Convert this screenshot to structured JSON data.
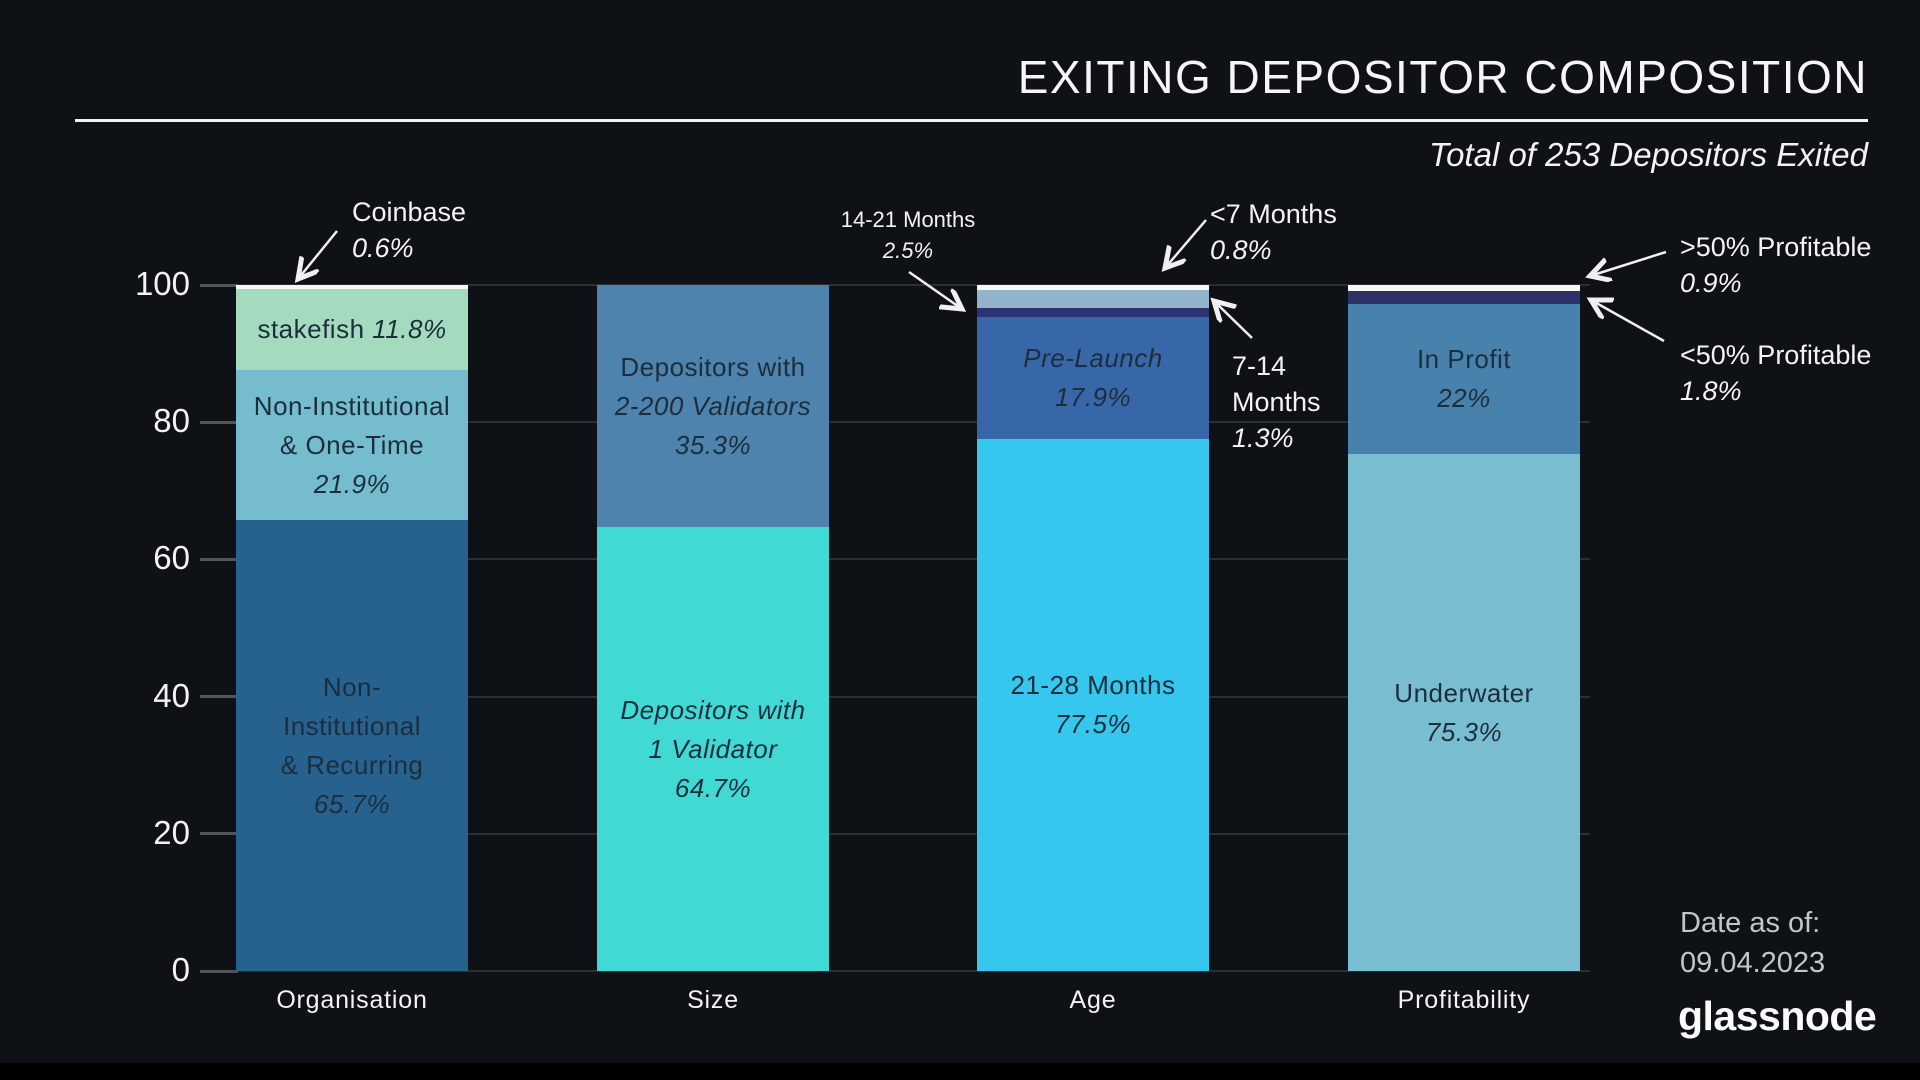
{
  "chart_data": {
    "type": "bar",
    "subtype": "stacked_100_percent",
    "title": "EXITING DEPOSITOR COMPOSITION",
    "subtitle": "Total of 253 Depositors Exited",
    "ylim": [
      0,
      100
    ],
    "yticks": [
      0,
      20,
      40,
      60,
      80,
      100
    ],
    "grid": "horizontal",
    "legend_position": "none",
    "categories": [
      "Organisation",
      "Size",
      "Age",
      "Profitability"
    ],
    "colors": {
      "background": "#0e1115",
      "gridline": "#2b2e33",
      "tick_stub": "#51555a",
      "axis_text": "#f2f3f4",
      "bar_label_text": "#1c2e3c",
      "annotation_arrow": "#eef0f1"
    },
    "bars": [
      {
        "category": "Organisation",
        "segments": [
          {
            "name": "Non-Institutional & Recurring",
            "value": 65.7,
            "color": "#27618e",
            "lines": [
              [
                {
                  "t": "Non-",
                  "i": false
                }
              ],
              [
                {
                  "t": "Institutional",
                  "i": false
                }
              ],
              [
                {
                  "t": "& Recurring",
                  "i": false
                }
              ],
              [
                {
                  "t": "65.7%",
                  "i": true
                }
              ]
            ]
          },
          {
            "name": "Non-Institutional & One-Time",
            "value": 21.9,
            "color": "#74bcce",
            "lines": [
              [
                {
                  "t": "Non-Institutional",
                  "i": false
                }
              ],
              [
                {
                  "t": "& One-Time",
                  "i": false
                }
              ],
              [
                {
                  "t": "21.9%",
                  "i": true
                }
              ]
            ]
          },
          {
            "name": "stakefish",
            "value": 11.8,
            "color": "#a4dabe",
            "lines": [
              [
                {
                  "t": "stakefish ",
                  "i": false
                },
                {
                  "t": "11.8%",
                  "i": true
                }
              ]
            ]
          },
          {
            "name": "Coinbase",
            "value": 0.6,
            "color": "#f7f8f6",
            "lines": []
          }
        ]
      },
      {
        "category": "Size",
        "segments": [
          {
            "name": "Depositors with 1 Validator",
            "value": 64.7,
            "color": "#40d9d4",
            "lines": [
              [
                {
                  "t": "Depositors with",
                  "i": true
                }
              ],
              [
                {
                  "t": "1 Validator",
                  "i": true
                }
              ],
              [
                {
                  "t": "64.7%",
                  "i": true
                }
              ]
            ]
          },
          {
            "name": "Depositors with 2-200 Validators",
            "value": 35.3,
            "color": "#4d83ad",
            "lines": [
              [
                {
                  "t": "Depositors with",
                  "i": false
                }
              ],
              [
                {
                  "t": "2-200 Validators",
                  "i": true
                }
              ],
              [
                {
                  "t": "35.3%",
                  "i": true
                }
              ]
            ]
          }
        ]
      },
      {
        "category": "Age",
        "segments": [
          {
            "name": "21-28 Months",
            "value": 77.5,
            "color": "#35c7ee",
            "lines": [
              [
                {
                  "t": "21-28 Months",
                  "i": false
                }
              ],
              [
                {
                  "t": "77.5%",
                  "i": true
                }
              ]
            ]
          },
          {
            "name": "Pre-Launch",
            "value": 17.9,
            "color": "#3867a9",
            "lines": [
              [
                {
                  "t": "Pre-Launch",
                  "i": true
                }
              ],
              [
                {
                  "t": "17.9%",
                  "i": true
                }
              ]
            ]
          },
          {
            "name": "7-14 Months",
            "value": 1.3,
            "color": "#2d3272",
            "lines": []
          },
          {
            "name": "14-21 Months",
            "value": 2.5,
            "color": "#92b4ca",
            "lines": []
          },
          {
            "name": "<7 Months",
            "value": 0.8,
            "color": "#f7f8f6",
            "lines": []
          }
        ]
      },
      {
        "category": "Profitability",
        "segments": [
          {
            "name": "Underwater",
            "value": 75.3,
            "color": "#79bdd0",
            "lines": [
              [
                {
                  "t": "Underwater",
                  "i": false
                }
              ],
              [
                {
                  "t": "75.3%",
                  "i": true
                }
              ]
            ]
          },
          {
            "name": "In Profit",
            "value": 22,
            "color": "#4881ab",
            "lines": [
              [
                {
                  "t": "In Profit",
                  "i": false
                }
              ],
              [
                {
                  "t": "22%",
                  "i": true
                }
              ]
            ]
          },
          {
            "name": "<50% Profitable",
            "value": 1.8,
            "color": "#2e3168",
            "lines": []
          },
          {
            "name": ">50% Profitable",
            "value": 0.9,
            "color": "#f7f8f6",
            "lines": []
          }
        ]
      }
    ],
    "annotations": [
      {
        "id": "coinbase",
        "lines": [
          [
            {
              "t": "Coinbase",
              "i": false
            }
          ],
          [
            {
              "t": "0.6%",
              "i": true
            }
          ]
        ]
      },
      {
        "id": "m1421",
        "lines": [
          [
            {
              "t": "14-21 Months",
              "i": false
            }
          ],
          [
            {
              "t": "2.5%",
              "i": true
            }
          ]
        ]
      },
      {
        "id": "lt7",
        "lines": [
          [
            {
              "t": "<7 Months",
              "i": false
            }
          ],
          [
            {
              "t": "0.8%",
              "i": true
            }
          ]
        ]
      },
      {
        "id": "m714",
        "lines": [
          [
            {
              "t": "7-14",
              "i": false
            }
          ],
          [
            {
              "t": "Months",
              "i": false
            }
          ],
          [
            {
              "t": "1.3%",
              "i": true
            }
          ]
        ]
      },
      {
        "id": "gt50profit",
        "lines": [
          [
            {
              "t": ">50% Profitable",
              "i": false
            }
          ],
          [
            {
              "t": "0.9%",
              "i": true
            }
          ]
        ]
      },
      {
        "id": "lt50profit",
        "lines": [
          [
            {
              "t": "<50% Profitable",
              "i": false
            }
          ],
          [
            {
              "t": "1.8%",
              "i": true
            }
          ]
        ]
      }
    ],
    "footer": {
      "date_label": "Date as of:",
      "date": "09.04.2023",
      "brand": "glassnode"
    }
  }
}
